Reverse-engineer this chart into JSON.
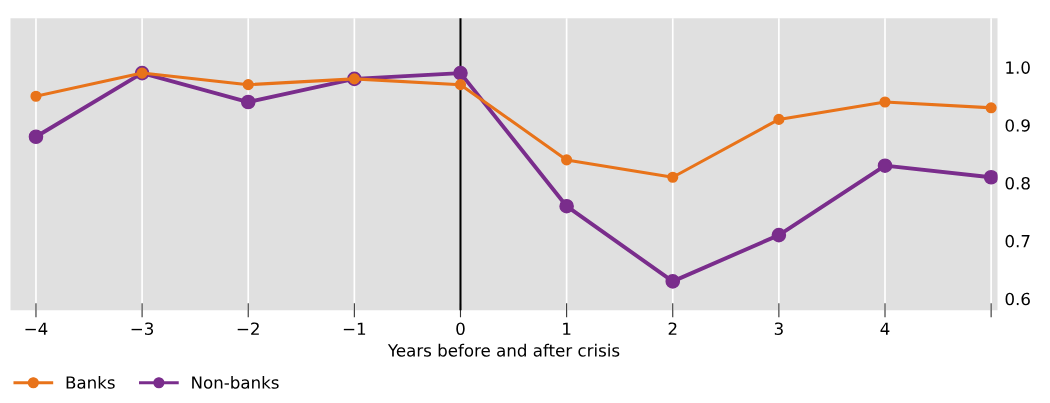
{
  "chart_data": {
    "type": "line",
    "xlabel": "Years before and after crisis",
    "x": [
      -4,
      -3,
      -2,
      -1,
      0,
      1,
      2,
      3,
      4,
      5
    ],
    "series": [
      {
        "name": "Banks",
        "color": "#e8731a",
        "values": [
          0.95,
          0.99,
          0.97,
          0.98,
          0.97,
          0.84,
          0.81,
          0.91,
          0.94,
          0.93
        ]
      },
      {
        "name": "Non-banks",
        "color": "#7a2d8c",
        "values": [
          0.88,
          0.99,
          0.94,
          0.98,
          0.99,
          0.76,
          0.63,
          0.71,
          0.83,
          0.81
        ]
      }
    ],
    "xlim": [
      -4.24,
      5.06
    ],
    "ylim": [
      0.58,
      1.085
    ],
    "xticks": [
      {
        "value": -4,
        "label": "−4"
      },
      {
        "value": -3,
        "label": "−3"
      },
      {
        "value": -2,
        "label": "−2"
      },
      {
        "value": -1,
        "label": "−1"
      },
      0,
      1,
      2,
      3,
      4,
      {
        "value": 5,
        "label": null
      }
    ],
    "yticks": [
      0.6,
      0.7,
      0.8,
      0.9,
      {
        "value": 1.0,
        "label": "1.0"
      }
    ],
    "ref_lines": [
      {
        "axis": "x",
        "value": 0,
        "color": "#000000"
      }
    ],
    "grid": "x",
    "legend": "bottom left",
    "marker": "circle",
    "line_style": "solid"
  }
}
